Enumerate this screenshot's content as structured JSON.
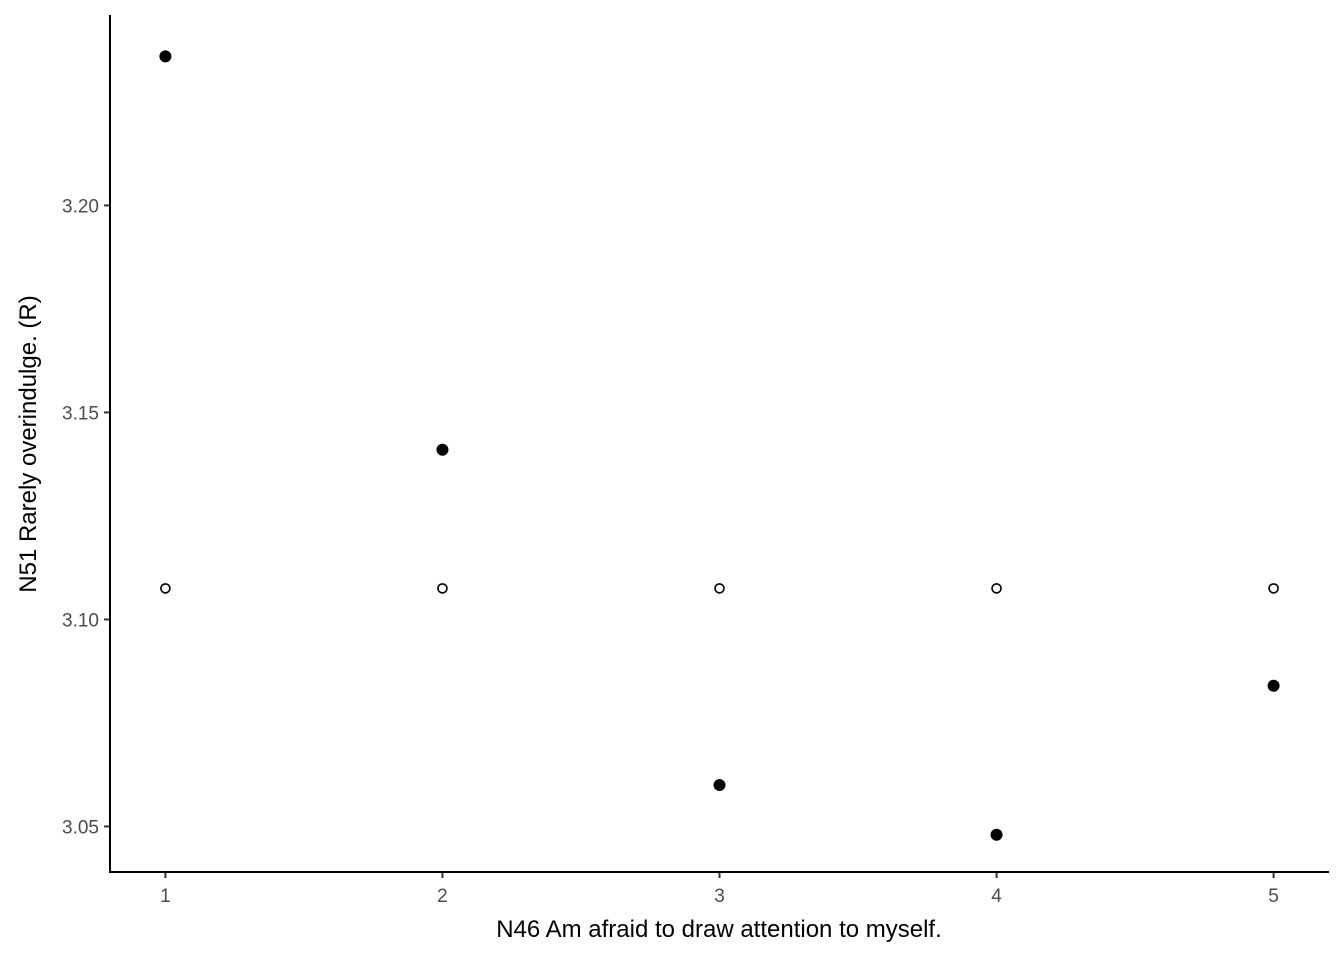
{
  "chart_data": {
    "type": "scatter",
    "title": "",
    "xlabel": "N46 Am afraid to draw attention to myself.",
    "ylabel": "N51 Rarely overindulge. (R)",
    "x_ticks": [
      "1",
      "2",
      "3",
      "4",
      "5"
    ],
    "y_ticks": [
      "3.05",
      "3.10",
      "3.15",
      "3.20"
    ],
    "xlim": [
      0.8,
      5.2
    ],
    "ylim": [
      3.039,
      3.246
    ],
    "grid": false,
    "legend": "none",
    "series": [
      {
        "marker": "filled-circle",
        "color": "#000000",
        "points": [
          {
            "x": 1,
            "y": 3.236
          },
          {
            "x": 2,
            "y": 3.141
          },
          {
            "x": 3,
            "y": 3.06
          },
          {
            "x": 4,
            "y": 3.048
          },
          {
            "x": 5,
            "y": 3.084
          }
        ]
      },
      {
        "marker": "open-circle",
        "color": "#000000",
        "points": [
          {
            "x": 1,
            "y": 3.1075
          },
          {
            "x": 2,
            "y": 3.1075
          },
          {
            "x": 3,
            "y": 3.1075
          },
          {
            "x": 4,
            "y": 3.1075
          },
          {
            "x": 5,
            "y": 3.1075
          }
        ]
      }
    ]
  }
}
